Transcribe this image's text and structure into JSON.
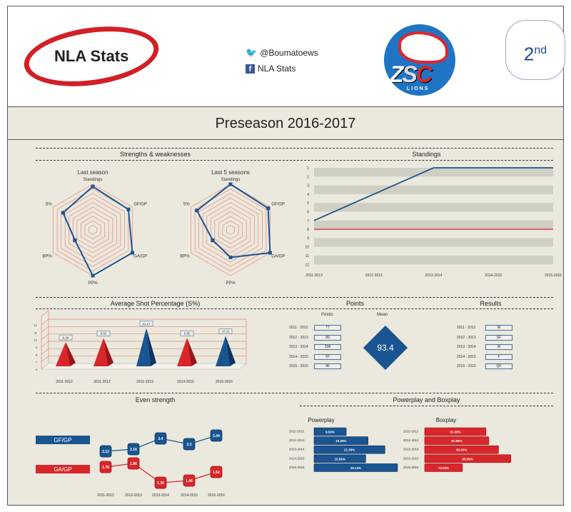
{
  "header": {
    "logo_text": "NLA Stats",
    "twitter": "@Boumatoews",
    "facebook": "NLA Stats",
    "team_logo_text": "ZSC LIONS",
    "rank": "2",
    "rank_suffix": "nd"
  },
  "title": "Preseason 2016-2017",
  "sections": {
    "strengths": "Strengths & weaknesses",
    "standings": "Standings",
    "shot": "Average Shot Percentage (S%)",
    "points": "Points",
    "results": "Results",
    "even": "Even strength",
    "ppbp": "Powerplay and Boxplay"
  },
  "colors": {
    "blue": "#1a5592",
    "red": "#d9262a",
    "grid": "#e58a78"
  },
  "chart_data": [
    {
      "type": "radar",
      "title": "Last season",
      "axes": [
        "Standings",
        "GF/GP",
        "GA/GP",
        "PP%",
        "BP%",
        "S%"
      ],
      "values": [
        0.95,
        0.9,
        1.0,
        1.0,
        0.45,
        0.75
      ],
      "range": [
        0,
        1
      ]
    },
    {
      "type": "radar",
      "title": "Last 5 seasons",
      "axes": [
        "Standings",
        "GF/GP",
        "GA/GP",
        "PP%",
        "BP%",
        "S%"
      ],
      "values": [
        1.0,
        0.95,
        1.0,
        0.6,
        0.45,
        0.85
      ],
      "range": [
        0,
        1
      ]
    },
    {
      "type": "line",
      "categories": [
        "2011-2012",
        "2012-2013",
        "2013-2014",
        "2014-2015",
        "2015-2016"
      ],
      "values": [
        7,
        4,
        1,
        1,
        1
      ],
      "reference_line": 8,
      "ylim": [
        1,
        12
      ],
      "y_ticks": [
        "1",
        "2",
        "3",
        "4",
        "5",
        "6",
        "7",
        "8",
        "9",
        "10",
        "11",
        "12"
      ],
      "y_inverted": true
    },
    {
      "type": "bar",
      "style": "3d-pyramid",
      "categories": [
        "2011-2012",
        "2011-2012",
        "2012-2013",
        "2014-2015",
        "2015-2016"
      ],
      "values": [
        9.28,
        9.82,
        11.17,
        9.85,
        10.11
      ],
      "labels": [
        "9.28",
        "9.82",
        "11.17",
        "9.85",
        "10.11"
      ],
      "colors": [
        "red",
        "red",
        "blue",
        "red",
        "blue"
      ],
      "ylim": [
        6,
        12
      ],
      "y_ticks": [
        "6",
        "7",
        "8",
        "9",
        "10",
        "11",
        "12"
      ]
    },
    {
      "type": "line",
      "categories": [
        "2011-2012",
        "2012-2013",
        "2013-2014",
        "2014-2015",
        "2015-2016"
      ],
      "series": [
        {
          "name": "GF/GP",
          "values": [
            2.12,
            2.16,
            2.4,
            2.3,
            2.44
          ],
          "labels": [
            "2.12",
            "2.16",
            "2.4",
            "2.3",
            "2.44"
          ]
        },
        {
          "name": "GA/GP",
          "values": [
            1.76,
            1.86,
            1.36,
            1.46,
            1.62
          ],
          "labels": [
            "1.76",
            "1.86",
            "1.36",
            "1.46",
            "1.62"
          ]
        }
      ]
    },
    {
      "type": "bar",
      "orientation": "horizontal",
      "title": "Powerplay",
      "categories": [
        "2011-2012",
        "2012-2013",
        "2013-2014",
        "2014-2015",
        "2015-2016"
      ],
      "values": [
        9.69,
        16.26,
        21.35,
        15.56,
        25.14
      ],
      "labels": [
        "9.69%",
        "16.26%",
        "21.35%",
        "15.56%",
        "25.14%"
      ]
    },
    {
      "type": "bar",
      "orientation": "horizontal",
      "title": "Boxplay",
      "categories": [
        "2011-2012",
        "2012-2013",
        "2013-2014",
        "2014-2015",
        "2015-2016"
      ],
      "values": [
        81.08,
        81.58,
        83.33,
        85.56,
        76.82
      ],
      "labels": [
        "81.08%",
        "81.58%",
        "83.33%",
        "85.56%",
        "76.82%"
      ]
    }
  ],
  "points": {
    "header": "Points",
    "mean_label": "Mean",
    "mean": "93.4",
    "rows": [
      {
        "season": "2011 - 2012",
        "value": "77"
      },
      {
        "season": "2012 - 2013",
        "value": "89"
      },
      {
        "season": "2013 - 2014",
        "value": "108"
      },
      {
        "season": "2014 - 2015",
        "value": "97"
      },
      {
        "season": "2015 - 2016",
        "value": "96"
      }
    ]
  },
  "results": {
    "rows": [
      {
        "season": "2011 - 2012",
        "value": "W"
      },
      {
        "season": "2012 - 2013",
        "value": "SF"
      },
      {
        "season": "2013 - 2014",
        "value": "W"
      },
      {
        "season": "2014 - 2015",
        "value": "F"
      },
      {
        "season": "2015 - 2016",
        "value": "QF"
      }
    ]
  }
}
